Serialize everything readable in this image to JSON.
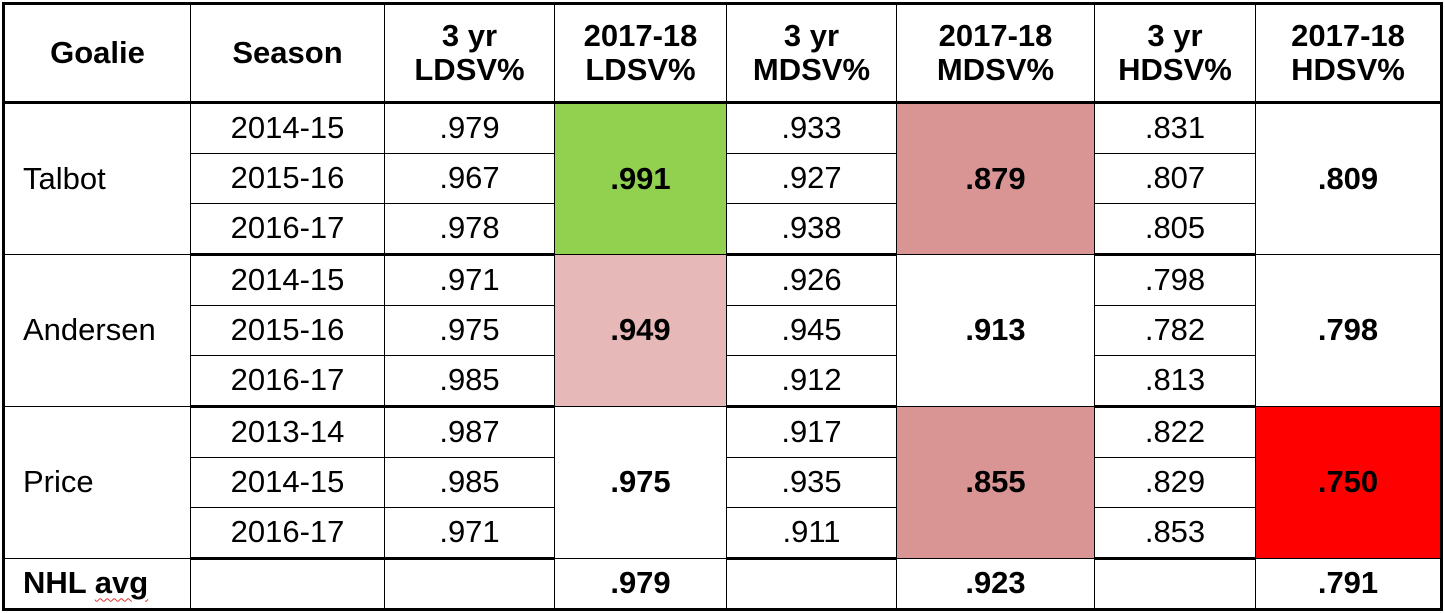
{
  "headers": [
    {
      "line1": "Goalie",
      "line2": ""
    },
    {
      "line1": "Season",
      "line2": ""
    },
    {
      "line1": "3 yr",
      "line2": "LDSV%"
    },
    {
      "line1": "2017-18",
      "line2": "LDSV%"
    },
    {
      "line1": "3 yr",
      "line2": "MDSV%"
    },
    {
      "line1": "2017-18",
      "line2": "MDSV%"
    },
    {
      "line1": "3 yr",
      "line2": "HDSV%"
    },
    {
      "line1": "2017-18",
      "line2": "HDSV%"
    }
  ],
  "goalies": [
    {
      "name": "Talbot",
      "seasons": [
        {
          "season": "2014-15",
          "ld3": ".979",
          "md3": ".933",
          "hd3": ".831"
        },
        {
          "season": "2015-16",
          "ld3": ".967",
          "md3": ".927",
          "hd3": ".807"
        },
        {
          "season": "2016-17",
          "ld3": ".978",
          "md3": ".938",
          "hd3": ".805"
        }
      ],
      "ld1718": ".991",
      "ld1718_color": "#92d050",
      "md1718": ".879",
      "md1718_color": "#d99594",
      "hd1718": ".809",
      "hd1718_color": "#ffffff"
    },
    {
      "name": "Andersen",
      "seasons": [
        {
          "season": "2014-15",
          "ld3": ".971",
          "md3": ".926",
          "hd3": ".798"
        },
        {
          "season": "2015-16",
          "ld3": ".975",
          "md3": ".945",
          "hd3": ".782"
        },
        {
          "season": "2016-17",
          "ld3": ".985",
          "md3": ".912",
          "hd3": ".813"
        }
      ],
      "ld1718": ".949",
      "ld1718_color": "#e6b8b7",
      "md1718": ".913",
      "md1718_color": "#ffffff",
      "hd1718": ".798",
      "hd1718_color": "#ffffff"
    },
    {
      "name": "Price",
      "seasons": [
        {
          "season": "2013-14",
          "ld3": ".987",
          "md3": ".917",
          "hd3": ".822"
        },
        {
          "season": "2014-15",
          "ld3": ".985",
          "md3": ".935",
          "hd3": ".829"
        },
        {
          "season": "2016-17",
          "ld3": ".971",
          "md3": ".911",
          "hd3": ".853"
        }
      ],
      "ld1718": ".975",
      "ld1718_color": "#ffffff",
      "md1718": ".855",
      "md1718_color": "#d99594",
      "hd1718": ".750",
      "hd1718_color": "#ff0000"
    }
  ],
  "nhl_avg": {
    "label": "NHL avg",
    "ld1718": ".979",
    "md1718": ".923",
    "hd1718": ".791"
  }
}
